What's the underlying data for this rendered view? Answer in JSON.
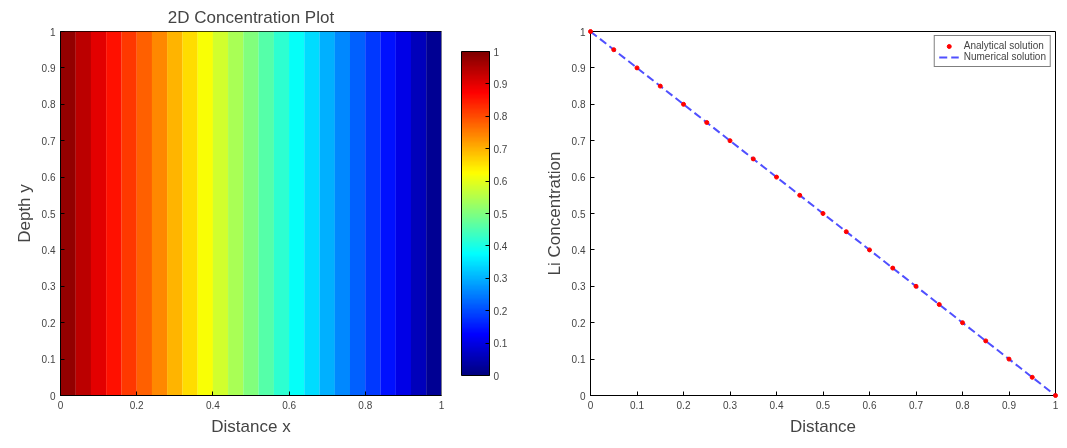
{
  "chart_data": [
    {
      "type": "heatmap",
      "title": "2D Concentration Plot",
      "xlabel": "Distance x",
      "ylabel": "Depth y",
      "x": [
        0.02,
        0.06,
        0.1,
        0.14,
        0.18,
        0.22,
        0.26,
        0.3,
        0.34,
        0.38,
        0.42,
        0.46,
        0.5,
        0.54,
        0.58,
        0.62,
        0.66,
        0.7,
        0.74,
        0.78,
        0.82,
        0.86,
        0.9,
        0.94,
        0.98
      ],
      "cells": [
        [
          0.98,
          0.94,
          0.9,
          0.86,
          0.82,
          0.78,
          0.74,
          0.7,
          0.66,
          0.62,
          0.58,
          0.54,
          0.5,
          0.46,
          0.42,
          0.38,
          0.34,
          0.3,
          0.26,
          0.22,
          0.18,
          0.14,
          0.1,
          0.06,
          0.02
        ]
      ],
      "xlim": [
        0,
        1
      ],
      "xticks": [
        0,
        0.2,
        0.4,
        0.6,
        0.8,
        1
      ],
      "ylim": [
        0,
        1
      ],
      "yticks": [
        0,
        0.1,
        0.2,
        0.3,
        0.4,
        0.5,
        0.6,
        0.7,
        0.8,
        0.9,
        1
      ],
      "clim": [
        0,
        1
      ],
      "cticks": [
        0,
        0.1,
        0.2,
        0.3,
        0.4,
        0.5,
        0.6,
        0.7,
        0.8,
        0.9,
        1
      ]
    },
    {
      "type": "line",
      "xlabel": "Distance",
      "ylabel": "Li Concentration",
      "xlim": [
        0,
        1
      ],
      "xticks": [
        0,
        0.1,
        0.2,
        0.3,
        0.4,
        0.5,
        0.6,
        0.7,
        0.8,
        0.9,
        1
      ],
      "ylim": [
        0,
        1
      ],
      "yticks": [
        0,
        0.1,
        0.2,
        0.3,
        0.4,
        0.5,
        0.6,
        0.7,
        0.8,
        0.9,
        1
      ],
      "legend": "top right",
      "series": [
        {
          "name": "Analytical solution",
          "type": "scatter",
          "marker": "circle",
          "color": "#ff0000",
          "x": [
            0,
            0.05,
            0.1,
            0.15,
            0.2,
            0.25,
            0.3,
            0.35,
            0.4,
            0.45,
            0.5,
            0.55,
            0.6,
            0.65,
            0.7,
            0.75,
            0.8,
            0.85,
            0.9,
            0.95,
            1
          ],
          "values": [
            1,
            0.95,
            0.9,
            0.85,
            0.8,
            0.75,
            0.7,
            0.65,
            0.6,
            0.55,
            0.5,
            0.45,
            0.4,
            0.35,
            0.3,
            0.25,
            0.2,
            0.15,
            0.1,
            0.05,
            0
          ]
        },
        {
          "name": "Numerical solution",
          "type": "line",
          "line_style": "dashed",
          "color": "#5050ff",
          "x": [
            0,
            0.1,
            0.2,
            0.3,
            0.4,
            0.5,
            0.6,
            0.7,
            0.8,
            0.9,
            1
          ],
          "values": [
            1,
            0.9,
            0.8,
            0.7,
            0.6,
            0.5,
            0.4,
            0.3,
            0.2,
            0.1,
            0
          ]
        }
      ]
    }
  ]
}
